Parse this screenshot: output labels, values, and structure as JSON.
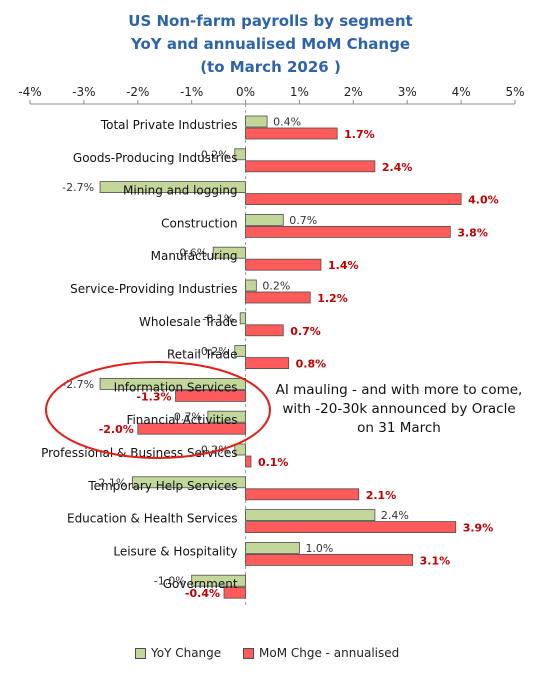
{
  "chart_data": {
    "type": "bar",
    "orientation": "horizontal",
    "title": [
      "US Non-farm payrolls by segment",
      "YoY and annualised MoM Change",
      "(to March 2026 )"
    ],
    "xlim": [
      -4,
      5
    ],
    "x_ticks": [
      "-4%",
      "-3%",
      "-2%",
      "-1%",
      "0%",
      "1%",
      "2%",
      "3%",
      "4%",
      "5%"
    ],
    "grid": false,
    "legend_position": "bottom",
    "categories": [
      "Total Private Industries",
      "Goods-Producing Industries",
      "Mining and logging",
      "Construction",
      "Manufacturing",
      "Service-Providing Industries",
      "Wholesale Trade",
      "Retail Trade",
      "Information Services",
      "Financial Activities",
      "Professional & Business Services",
      "Temporary Help Services",
      "Education & Health Services",
      "Leisure & Hospitality",
      "Government"
    ],
    "series": [
      {
        "name": "YoY Change",
        "color": "#C4D79B",
        "values": [
          0.4,
          -0.2,
          -2.7,
          0.7,
          -0.6,
          0.2,
          -0.1,
          -0.2,
          -2.7,
          -0.7,
          -0.2,
          -2.1,
          2.4,
          1.0,
          -1.0
        ],
        "labels": [
          "0.4%",
          "-0.2%",
          "-2.7%",
          "0.7%",
          "-0.6%",
          "0.2%",
          "-0.1%",
          "-0.2%",
          "-2.7%",
          "-0.7%",
          "-0.2%",
          "-2.1%",
          "2.4%",
          "1.0%",
          "-1.0%"
        ]
      },
      {
        "name": "MoM Chge - annualised",
        "color": "#FF5B5B",
        "values": [
          1.7,
          2.4,
          4.0,
          3.8,
          1.4,
          1.2,
          0.7,
          0.8,
          -1.3,
          -2.0,
          0.1,
          2.1,
          3.9,
          3.1,
          -0.4
        ],
        "labels": [
          "1.7%",
          "2.4%",
          "4.0%",
          "3.8%",
          "1.4%",
          "1.2%",
          "0.7%",
          "0.8%",
          "-1.3%",
          "-2.0%",
          "0.1%",
          "2.1%",
          "3.9%",
          "3.1%",
          "-0.4%"
        ]
      }
    ],
    "annotations": [
      "AI mauling - and with more to come,",
      "with -20-30k announced by Oracle",
      "on 31 March"
    ]
  }
}
